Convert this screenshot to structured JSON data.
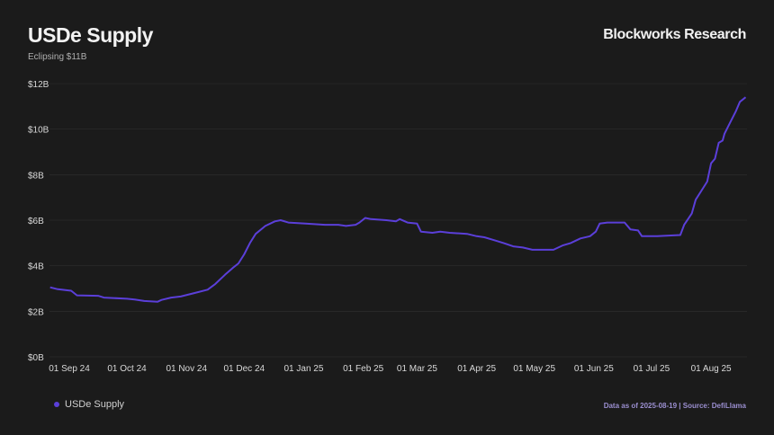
{
  "header": {
    "title": "USDe Supply",
    "subtitle": "Eclipsing $11B",
    "brand": "Blockworks Research"
  },
  "footer": {
    "source": "Data as of 2025-08-19 | Source: DefiLlama"
  },
  "colors": {
    "line": "#5b3fd9",
    "grid": "#2c2c2c",
    "background": "#1b1b1b"
  },
  "chart_data": {
    "type": "line",
    "title": "USDe Supply",
    "xlabel": "",
    "ylabel": "",
    "x_unit": "days since 2024-09-01",
    "ylim": [
      0,
      12
    ],
    "xlim": [
      -10,
      352
    ],
    "y_ticks": [
      0,
      2,
      4,
      6,
      8,
      10,
      12
    ],
    "y_tick_labels": [
      "$0B",
      "$2B",
      "$4B",
      "$6B",
      "$8B",
      "$10B",
      "$12B"
    ],
    "x_ticks": [
      0,
      30,
      61,
      91,
      122,
      153,
      181,
      212,
      242,
      273,
      303,
      334
    ],
    "x_tick_labels": [
      "01 Sep 24",
      "01 Oct 24",
      "01 Nov 24",
      "01 Dec 24",
      "01 Jan 25",
      "01 Feb 25",
      "01 Mar 25",
      "01 Apr 25",
      "01 May 25",
      "01 Jun 25",
      "01 Jul 25",
      "01 Aug 25"
    ],
    "grid": true,
    "legend": "bottom-left",
    "series": [
      {
        "name": "USDe Supply",
        "x": [
          -10,
          -6,
          1,
          4,
          15,
          18,
          30,
          34,
          39,
          46,
          48,
          53,
          58,
          65,
          72,
          76,
          81,
          85,
          88,
          91,
          94,
          97,
          102,
          107,
          110,
          114,
          123,
          133,
          140,
          144,
          149,
          151,
          154,
          157,
          165,
          170,
          172,
          176,
          181,
          183,
          189,
          193,
          198,
          207,
          212,
          216,
          222,
          226,
          231,
          236,
          241,
          247,
          252,
          257,
          261,
          266,
          271,
          274,
          276,
          280,
          289,
          292,
          296,
          298,
          306,
          318,
          320,
          324,
          326,
          329,
          332,
          334,
          336,
          338,
          340,
          341,
          344,
          347,
          349,
          352
        ],
        "values": [
          3.05,
          2.97,
          2.9,
          2.7,
          2.68,
          2.6,
          2.55,
          2.52,
          2.45,
          2.42,
          2.5,
          2.6,
          2.65,
          2.8,
          2.95,
          3.2,
          3.6,
          3.9,
          4.1,
          4.5,
          5.0,
          5.4,
          5.75,
          5.95,
          6.0,
          5.9,
          5.85,
          5.8,
          5.8,
          5.75,
          5.8,
          5.9,
          6.1,
          6.05,
          6.0,
          5.95,
          6.05,
          5.9,
          5.85,
          5.5,
          5.45,
          5.5,
          5.45,
          5.4,
          5.3,
          5.25,
          5.1,
          5.0,
          4.85,
          4.8,
          4.7,
          4.7,
          4.7,
          4.9,
          5.0,
          5.2,
          5.3,
          5.5,
          5.85,
          5.9,
          5.9,
          5.6,
          5.55,
          5.3,
          5.3,
          5.35,
          5.8,
          6.3,
          6.9,
          7.3,
          7.7,
          8.5,
          8.7,
          9.4,
          9.5,
          9.8,
          10.3,
          10.8,
          11.2,
          11.4
        ]
      }
    ]
  }
}
